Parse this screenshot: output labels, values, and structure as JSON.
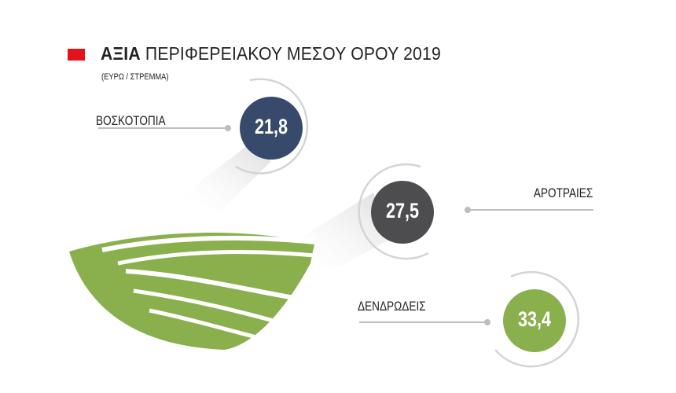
{
  "header": {
    "title_bold": "ΑΞΙΑ",
    "title_rest": "ΠΕΡΙΦΕΡΕΙΑΚΟΥ ΜΕΣΟΥ ΟΡΟΥ 2019",
    "subtitle": "(ΕΥΡΩ / ΣΤΡΕΜΜΑ)",
    "accent": "#e3131b"
  },
  "chart_data": {
    "type": "infographic",
    "title": "ΑΞΙΑ ΠΕΡΙΦΕΡΕΙΑΚΟΥ ΜΕΣΟΥ ΟΡΟΥ 2019",
    "unit": "(ΕΥΡΩ / ΣΤΡΕΜΜΑ)",
    "items": [
      {
        "label": "ΒΟΣΚΟΤΟΠΙΑ",
        "value": 21.8,
        "display": "21,8",
        "color": "#374a6b"
      },
      {
        "label": "ΑΡΟΤΡΑΙΕΣ",
        "value": 27.5,
        "display": "27,5",
        "color": "#4d4d4f"
      },
      {
        "label": "ΔΕΝΔΡΩΔΕΙΣ",
        "value": 33.4,
        "display": "33,4",
        "color": "#8ab04e"
      }
    ]
  }
}
